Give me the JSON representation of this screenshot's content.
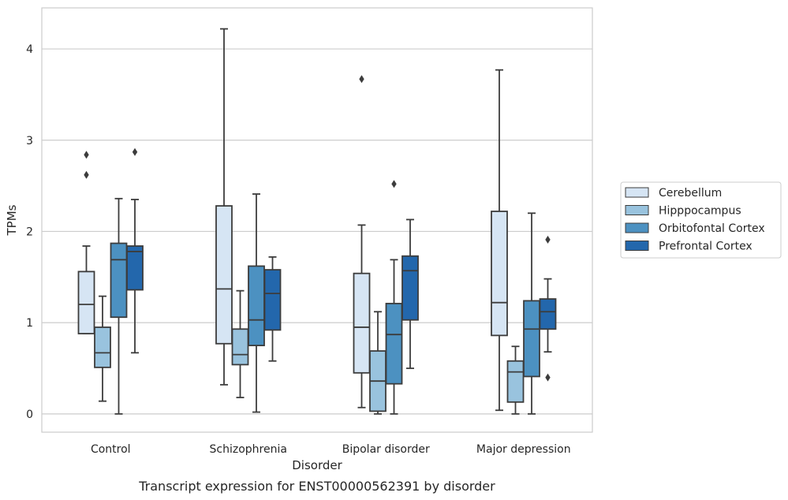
{
  "chart_data": {
    "type": "box",
    "title": "",
    "caption": "Transcript expression for ENST00000562391 by disorder",
    "xlabel": "Disorder",
    "ylabel": "TPMs",
    "ylim": [
      -0.2,
      4.45
    ],
    "yticks": [
      "0",
      "1",
      "2",
      "3",
      "4"
    ],
    "grid": "horizontal",
    "legend_position": "right",
    "categories": [
      "Control",
      "Schizophrenia",
      "Bipolar disorder",
      "Major depression"
    ],
    "series": [
      {
        "name": "Cerebellum",
        "color": "#d6e5f4",
        "boxes": [
          {
            "whislo": 0.88,
            "q1": 0.88,
            "med": 1.2,
            "q3": 1.56,
            "whishi": 1.84,
            "fliers": [
              2.62,
              2.84
            ]
          },
          {
            "whislo": 0.32,
            "q1": 0.77,
            "med": 1.37,
            "q3": 2.28,
            "whishi": 4.22,
            "fliers": []
          },
          {
            "whislo": 0.07,
            "q1": 0.45,
            "med": 0.95,
            "q3": 1.54,
            "whishi": 2.07,
            "fliers": [
              3.67
            ]
          },
          {
            "whislo": 0.04,
            "q1": 0.86,
            "med": 1.22,
            "q3": 2.22,
            "whishi": 3.77,
            "fliers": []
          }
        ]
      },
      {
        "name": "Hipppocampus",
        "color": "#99c3de",
        "boxes": [
          {
            "whislo": 0.14,
            "q1": 0.51,
            "med": 0.67,
            "q3": 0.95,
            "whishi": 1.29,
            "fliers": []
          },
          {
            "whislo": 0.18,
            "q1": 0.54,
            "med": 0.65,
            "q3": 0.93,
            "whishi": 1.35,
            "fliers": []
          },
          {
            "whislo": 0.0,
            "q1": 0.03,
            "med": 0.36,
            "q3": 0.69,
            "whishi": 1.12,
            "fliers": []
          },
          {
            "whislo": 0.0,
            "q1": 0.13,
            "med": 0.46,
            "q3": 0.58,
            "whishi": 0.74,
            "fliers": []
          }
        ]
      },
      {
        "name": "Orbitofontal Cortex",
        "color": "#4c91c1",
        "boxes": [
          {
            "whislo": 0.0,
            "q1": 1.06,
            "med": 1.69,
            "q3": 1.87,
            "whishi": 2.36,
            "fliers": []
          },
          {
            "whislo": 0.02,
            "q1": 0.75,
            "med": 1.03,
            "q3": 1.62,
            "whishi": 2.41,
            "fliers": []
          },
          {
            "whislo": 0.0,
            "q1": 0.33,
            "med": 0.87,
            "q3": 1.21,
            "whishi": 1.69,
            "fliers": [
              2.52
            ]
          },
          {
            "whislo": 0.0,
            "q1": 0.41,
            "med": 0.93,
            "q3": 1.24,
            "whishi": 2.2,
            "fliers": []
          }
        ]
      },
      {
        "name": "Prefrontal Cortex",
        "color": "#2367ac",
        "boxes": [
          {
            "whislo": 0.67,
            "q1": 1.36,
            "med": 1.78,
            "q3": 1.84,
            "whishi": 2.35,
            "fliers": [
              2.87
            ]
          },
          {
            "whislo": 0.58,
            "q1": 0.92,
            "med": 1.32,
            "q3": 1.58,
            "whishi": 1.72,
            "fliers": []
          },
          {
            "whislo": 0.5,
            "q1": 1.03,
            "med": 1.57,
            "q3": 1.73,
            "whishi": 2.13,
            "fliers": []
          },
          {
            "whislo": 0.68,
            "q1": 0.93,
            "med": 1.12,
            "q3": 1.26,
            "whishi": 1.48,
            "fliers": [
              0.4,
              1.91
            ]
          }
        ]
      }
    ]
  }
}
